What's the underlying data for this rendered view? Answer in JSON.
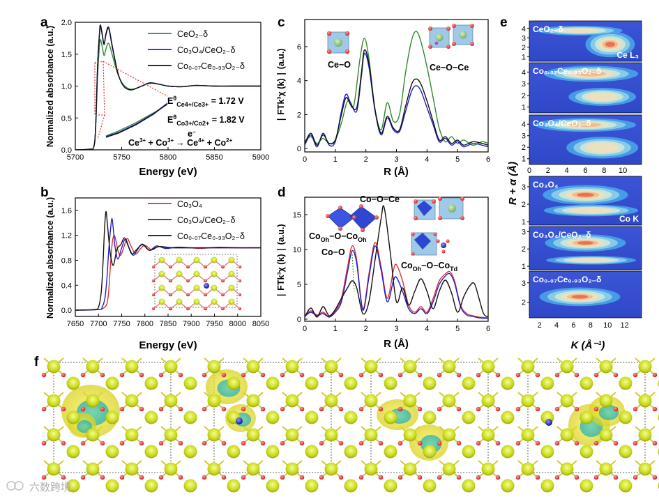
{
  "panel_labels": {
    "a": "a",
    "b": "b",
    "c": "c",
    "d": "d",
    "e": "e",
    "f": "f"
  },
  "colors": {
    "green": "#2e8b2e",
    "blue": "#1f1fcf",
    "black": "#111111",
    "red": "#e03030"
  },
  "chart_data": [
    {
      "id": "a",
      "type": "line",
      "xlabel": "Energy (eV)",
      "ylabel": "Normalized absorbance (a.u.)",
      "xlim": [
        5700,
        5900
      ],
      "ylim": [
        0,
        2.0
      ],
      "xticks": [
        "5700",
        "5750",
        "5800",
        "5850",
        "5900"
      ],
      "yticks": [
        "0.0",
        "0.5",
        "1.0",
        "1.5",
        "2.0"
      ],
      "legend": [
        "CeO₂₋δ",
        "Co₃O₄/CeO₂₋δ",
        "Co₀.₀₇Ce₀.₉₃O₂₋δ"
      ],
      "series": [
        {
          "name": "CeO₂₋δ",
          "color": "green",
          "x": [
            5700,
            5715,
            5720,
            5722,
            5724,
            5726,
            5727,
            5729,
            5731,
            5733,
            5736,
            5740,
            5746,
            5752,
            5760,
            5770,
            5780,
            5790,
            5800,
            5815,
            5830,
            5850,
            5870,
            5900
          ],
          "y": [
            0.0,
            0.01,
            0.05,
            0.35,
            1.15,
            1.62,
            1.73,
            1.62,
            1.48,
            1.58,
            1.67,
            1.48,
            1.18,
            1.02,
            0.95,
            0.99,
            1.04,
            1.03,
            1.0,
            0.99,
            1.01,
            1.0,
            1.0,
            1.0
          ]
        },
        {
          "name": "Co₃O₄/CeO₂₋δ",
          "color": "blue",
          "x": [
            5700,
            5715,
            5720,
            5722,
            5724,
            5726,
            5727,
            5729,
            5731,
            5733,
            5736,
            5740,
            5746,
            5752,
            5760,
            5770,
            5780,
            5790,
            5800,
            5815,
            5830,
            5850,
            5870,
            5900
          ],
          "y": [
            0.0,
            0.01,
            0.05,
            0.4,
            1.3,
            1.8,
            1.93,
            1.8,
            1.65,
            1.8,
            1.9,
            1.6,
            1.2,
            1.0,
            0.94,
            0.99,
            1.05,
            1.03,
            1.0,
            0.99,
            1.01,
            1.0,
            1.0,
            1.0
          ]
        },
        {
          "name": "Co₀.₀₇Ce₀.₉₃O₂₋δ",
          "color": "black",
          "x": [
            5700,
            5715,
            5720,
            5722,
            5724,
            5726,
            5727,
            5729,
            5731,
            5733,
            5736,
            5740,
            5746,
            5752,
            5760,
            5770,
            5780,
            5790,
            5800,
            5815,
            5830,
            5850,
            5870,
            5900
          ],
          "y": [
            0.0,
            0.01,
            0.05,
            0.4,
            1.32,
            1.82,
            1.96,
            1.82,
            1.66,
            1.82,
            1.92,
            1.62,
            1.2,
            1.0,
            0.94,
            0.99,
            1.05,
            1.03,
            1.0,
            0.99,
            1.01,
            1.0,
            1.0,
            1.0
          ]
        }
      ],
      "annotations": {
        "e1": "E",
        "e1_sup": "θ",
        "e1_sub": "Ce4+/Ce3+",
        "e1_val": " = 1.72 V",
        "e2": "E",
        "e2_sup": "θ",
        "e2_sub": "Co3+/Co2+",
        "e2_val": " = 1.82 V",
        "reaction_a": "Ce",
        "reaction_a_sup": "3+",
        "reaction_b": " + Co",
        "reaction_b_sup": "3+",
        "reaction_e": "e",
        "reaction_e_sup": "−",
        "reaction_arrow": "→",
        "reaction_c": " Ce",
        "reaction_c_sup": "4+",
        "reaction_d": " + Co",
        "reaction_d_sup": "2+"
      }
    },
    {
      "id": "b",
      "type": "line",
      "xlabel": "Energy (eV)",
      "ylabel": "Normalized absorbance (a.u.)",
      "xlim": [
        7650,
        8050
      ],
      "ylim": [
        -0.1,
        1.8
      ],
      "xticks": [
        "7650",
        "7700",
        "7750",
        "7800",
        "7850",
        "7900",
        "7950",
        "8000",
        "8050"
      ],
      "yticks": [
        "0.0",
        "0.4",
        "0.8",
        "1.2",
        "1.6"
      ],
      "legend": [
        "Co₃O₄",
        "Co₃O₄/CeO₂₋δ",
        "Co₀.₀₇Ce₀.₉₃O₂₋δ"
      ],
      "series": [
        {
          "name": "Co₃O₄",
          "color": "red",
          "x": [
            7650,
            7700,
            7710,
            7718,
            7722,
            7726,
            7730,
            7734,
            7738,
            7742,
            7748,
            7755,
            7762,
            7770,
            7780,
            7790,
            7800,
            7815,
            7830,
            7850,
            7880,
            7920,
            7960,
            8000,
            8050
          ],
          "y": [
            0.0,
            0.01,
            0.03,
            0.1,
            0.3,
            0.75,
            1.1,
            1.2,
            1.1,
            0.95,
            0.88,
            1.02,
            1.15,
            1.03,
            0.9,
            0.98,
            1.04,
            0.97,
            1.02,
            1.0,
            1.01,
            0.99,
            1.01,
            1.0,
            1.0
          ]
        },
        {
          "name": "Co₃O₄/CeO₂₋δ",
          "color": "blue",
          "x": [
            7650,
            7700,
            7708,
            7714,
            7718,
            7722,
            7726,
            7729,
            7732,
            7736,
            7742,
            7750,
            7758,
            7766,
            7775,
            7785,
            7795,
            7810,
            7825,
            7845,
            7870,
            7900,
            7950,
            8000,
            8050
          ],
          "y": [
            0.0,
            0.01,
            0.05,
            0.2,
            0.5,
            0.95,
            1.3,
            1.47,
            1.3,
            1.0,
            0.82,
            1.0,
            1.14,
            1.0,
            0.88,
            0.98,
            1.06,
            0.96,
            1.03,
            0.99,
            1.01,
            1.0,
            1.0,
            1.0,
            1.0
          ]
        },
        {
          "name": "Co₀.₀₇Ce₀.₉₃O₂₋δ",
          "color": "black",
          "x": [
            7650,
            7690,
            7700,
            7706,
            7710,
            7713,
            7716,
            7719,
            7722,
            7726,
            7732,
            7740,
            7748,
            7756,
            7764,
            7772,
            7782,
            7795,
            7810,
            7830,
            7860,
            7900,
            7950,
            8000,
            8050
          ],
          "y": [
            0.0,
            0.01,
            0.05,
            0.3,
            0.8,
            1.3,
            1.58,
            1.4,
            1.15,
            0.88,
            0.72,
            0.98,
            1.05,
            1.16,
            1.03,
            0.9,
            0.97,
            1.05,
            0.96,
            1.02,
            1.0,
            1.0,
            1.0,
            1.0,
            1.0
          ]
        }
      ]
    },
    {
      "id": "c",
      "type": "line",
      "xlabel": "R (Å)",
      "ylabel": "∣ FTk³χ (k) ∣ (a.u.)",
      "xlim": [
        0,
        6
      ],
      "ylim": [
        -0.2,
        7.6
      ],
      "xticks": [
        "0",
        "1",
        "2",
        "3",
        "4",
        "5",
        "6"
      ],
      "yticks": [
        "0",
        "2",
        "4",
        "6"
      ],
      "labels": [
        "Ce−O",
        "Ce−O−Ce"
      ],
      "series": [
        {
          "name": "CeO₂₋δ",
          "color": "green",
          "x": [
            0,
            0.2,
            0.4,
            0.6,
            0.8,
            1.0,
            1.2,
            1.4,
            1.6,
            1.8,
            1.95,
            2.1,
            2.3,
            2.5,
            2.7,
            2.9,
            3.1,
            3.3,
            3.5,
            3.65,
            3.8,
            4.0,
            4.2,
            4.4,
            4.6,
            4.8,
            5.0,
            5.2,
            5.5,
            5.8,
            6.0
          ],
          "y": [
            0.4,
            0.7,
            0.3,
            0.6,
            0.3,
            0.5,
            1.5,
            2.8,
            2.5,
            5.2,
            6.5,
            5.3,
            2.3,
            1.1,
            2.7,
            1.6,
            2.0,
            4.5,
            6.4,
            6.9,
            6.3,
            4.8,
            3.0,
            1.2,
            0.4,
            0.7,
            0.3,
            0.5,
            0.2,
            0.4,
            0.3
          ]
        },
        {
          "name": "Co₃O₄/CeO₂₋δ",
          "color": "blue",
          "x": [
            0,
            0.2,
            0.4,
            0.6,
            0.8,
            1.0,
            1.2,
            1.35,
            1.5,
            1.7,
            1.85,
            1.95,
            2.1,
            2.3,
            2.5,
            2.7,
            2.9,
            3.1,
            3.3,
            3.5,
            3.65,
            3.8,
            4.0,
            4.2,
            4.4,
            4.6,
            4.8,
            5.0,
            5.2,
            5.5,
            5.8,
            6.0
          ],
          "y": [
            0.2,
            0.8,
            0.1,
            0.9,
            0.2,
            0.4,
            2.2,
            3.2,
            2.7,
            2.2,
            4.2,
            5.6,
            4.8,
            2.2,
            0.8,
            1.8,
            1.1,
            1.0,
            2.2,
            3.4,
            3.7,
            3.4,
            2.4,
            1.4,
            0.4,
            0.6,
            0.2,
            0.4,
            0.1,
            0.3,
            0.2,
            0.1
          ]
        },
        {
          "name": "Co₀.₀₇Ce₀.₉₃O₂₋δ",
          "color": "black",
          "x": [
            0,
            0.2,
            0.4,
            0.6,
            0.8,
            1.0,
            1.2,
            1.35,
            1.5,
            1.7,
            1.85,
            1.95,
            2.1,
            2.3,
            2.5,
            2.7,
            2.9,
            3.1,
            3.3,
            3.5,
            3.65,
            3.8,
            4.0,
            4.2,
            4.4,
            4.6,
            4.8,
            5.0,
            5.2,
            5.5,
            5.8,
            6.0
          ],
          "y": [
            0.3,
            0.9,
            0.2,
            0.8,
            0.3,
            0.5,
            2.0,
            3.0,
            2.6,
            2.4,
            4.4,
            5.8,
            5.0,
            2.3,
            0.9,
            1.9,
            1.2,
            1.1,
            2.5,
            3.8,
            4.1,
            3.8,
            2.8,
            1.6,
            0.5,
            0.7,
            0.3,
            0.5,
            0.2,
            0.4,
            0.3,
            0.2
          ]
        }
      ]
    },
    {
      "id": "d",
      "type": "line",
      "xlabel": "R (Å)",
      "ylabel": "∣ FTk³χ (k) ∣ (a.u.)",
      "xlim": [
        0,
        6
      ],
      "ylim": [
        -0.3,
        17.5
      ],
      "xticks": [
        "0",
        "1",
        "2",
        "3",
        "4",
        "5",
        "6"
      ],
      "yticks": [
        "0",
        "5",
        "10",
        "15"
      ],
      "labels": {
        "cooce": "Co−O−Ce",
        "cooh_a": "Co",
        "cooh_a_sub": "Oh",
        "cooh_b": "−O−Co",
        "cooh_b_sub": "Oh",
        "coo": "Co−O",
        "cotd_a": "Co",
        "cotd_a_sub": "Oh",
        "cotd_b": "−O−Co",
        "cotd_b_sub": "Td"
      },
      "series": [
        {
          "name": "Co₃O₄",
          "color": "red",
          "x": [
            0,
            0.2,
            0.4,
            0.6,
            0.8,
            1.0,
            1.2,
            1.4,
            1.55,
            1.7,
            1.9,
            2.1,
            2.3,
            2.5,
            2.7,
            2.9,
            3.0,
            3.2,
            3.4,
            3.6,
            3.8,
            4.0,
            4.2,
            4.4,
            4.6,
            4.75,
            4.9,
            5.1,
            5.3,
            5.5,
            5.7,
            6.0
          ],
          "y": [
            0.5,
            1.2,
            0.6,
            1.0,
            0.4,
            1.2,
            3.0,
            7.5,
            10.5,
            8.5,
            1.5,
            6.5,
            11.0,
            7.5,
            3.0,
            7.0,
            7.8,
            5.5,
            2.0,
            1.0,
            1.8,
            1.0,
            3.0,
            5.5,
            6.5,
            6.8,
            5.5,
            2.0,
            0.8,
            0.5,
            0.3,
            0.2
          ]
        },
        {
          "name": "Co₃O₄/CeO₂₋δ",
          "color": "blue",
          "x": [
            0,
            0.2,
            0.4,
            0.6,
            0.8,
            1.0,
            1.2,
            1.4,
            1.55,
            1.7,
            1.9,
            2.1,
            2.3,
            2.5,
            2.7,
            2.9,
            3.0,
            3.2,
            3.4,
            3.6,
            3.8,
            4.0,
            4.2,
            4.4,
            4.6,
            4.75,
            4.9,
            5.1,
            5.3,
            5.5,
            5.7,
            6.0
          ],
          "y": [
            0.4,
            1.0,
            0.5,
            0.8,
            0.3,
            1.0,
            2.5,
            6.8,
            9.8,
            8.0,
            1.3,
            6.0,
            10.5,
            7.0,
            2.5,
            5.5,
            6.0,
            4.0,
            1.5,
            0.8,
            1.5,
            0.8,
            2.5,
            5.0,
            6.2,
            6.5,
            5.2,
            1.8,
            0.6,
            0.4,
            0.2,
            0.1
          ]
        },
        {
          "name": "Co₀.₀₇Ce₀.₉₃O₂₋δ",
          "color": "black",
          "x": [
            0,
            0.2,
            0.4,
            0.6,
            0.8,
            1.0,
            1.2,
            1.4,
            1.55,
            1.7,
            1.9,
            2.1,
            2.3,
            2.5,
            2.6,
            2.8,
            3.0,
            3.2,
            3.4,
            3.6,
            3.8,
            4.0,
            4.2,
            4.4,
            4.6,
            4.8,
            5.0,
            5.2,
            5.4,
            5.55,
            5.7,
            5.85,
            6.0
          ],
          "y": [
            0.3,
            1.6,
            0.3,
            1.8,
            0.5,
            1.4,
            3.0,
            4.5,
            5.5,
            4.5,
            0.8,
            2.5,
            8.5,
            14.5,
            16.0,
            9.5,
            2.5,
            4.5,
            2.0,
            4.0,
            5.8,
            4.0,
            1.5,
            4.0,
            5.6,
            3.8,
            1.0,
            3.2,
            4.8,
            5.1,
            3.0,
            0.8,
            0.3
          ]
        }
      ]
    }
  ],
  "panel_e": {
    "ylabel": "R + α (Å)",
    "xlabel": "K (Å⁻¹)",
    "top_xticks": [
      "0",
      "2",
      "4",
      "6",
      "8",
      "10"
    ],
    "bottom_xticks": [
      "2",
      "4",
      "6",
      "8",
      "10",
      "12"
    ],
    "tiles": [
      {
        "name": "ceo2",
        "label": "CeO₂₋δ",
        "edge": "Ce L₃",
        "yticks": [
          "1",
          "2",
          "3",
          "4"
        ]
      },
      {
        "name": "coceo",
        "label": "Co₀.₀₇Ce₀.₉₃O₂₋δ",
        "yticks": [
          "1",
          "2",
          "3",
          "4"
        ]
      },
      {
        "name": "co3o4ceo",
        "label": "Co₃O₄/CeO₂₋δ",
        "yticks": [
          "1",
          "2",
          "3",
          "4"
        ]
      },
      {
        "name": "co3o4",
        "label": "Co₃O₄",
        "edge": "Co K",
        "yticks": [
          "1",
          "2",
          "3"
        ]
      },
      {
        "name": "co3o4ceo-b",
        "label": "Co₃O₄/CeO₂₋δ",
        "yticks": [
          "1",
          "2",
          "3"
        ]
      },
      {
        "name": "coceo-b",
        "label": "Co₀.₀₇Ce₀.₉₃O₂₋δ",
        "yticks": [
          "2",
          "3"
        ]
      }
    ]
  },
  "watermark": "六数跨境"
}
